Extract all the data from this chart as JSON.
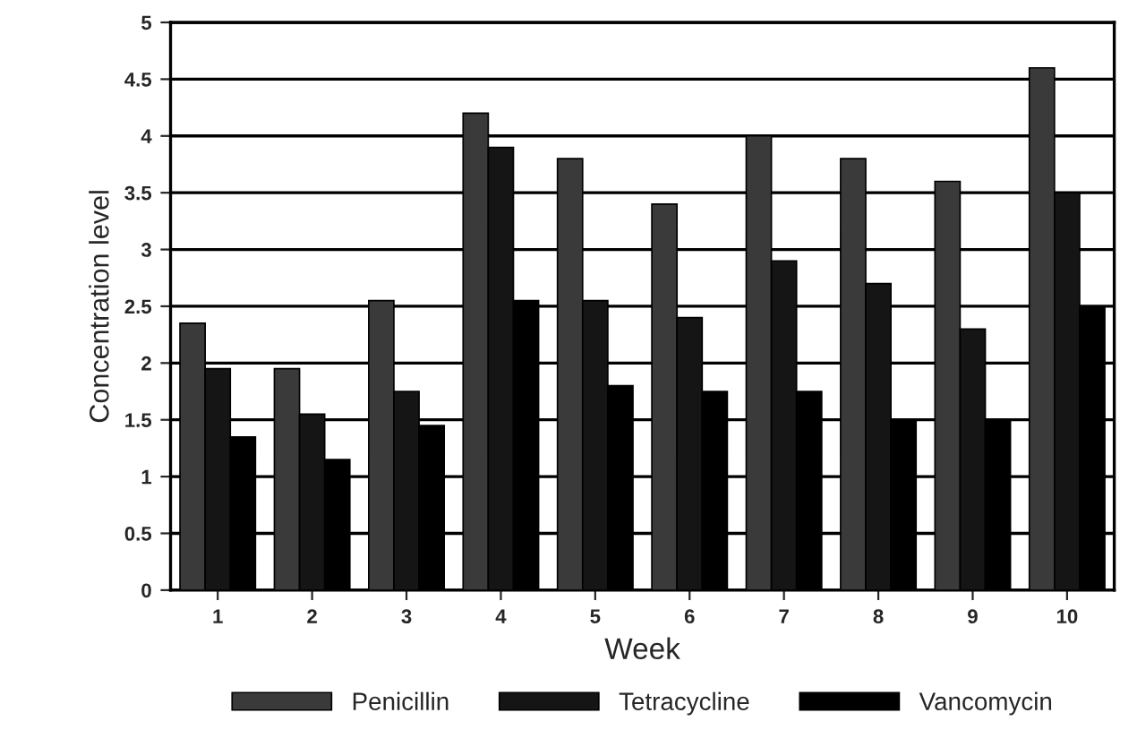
{
  "chart_data": {
    "type": "bar",
    "xlabel": "Week",
    "ylabel": "Concentration level",
    "categories": [
      "1",
      "2",
      "3",
      "4",
      "5",
      "6",
      "7",
      "8",
      "9",
      "10"
    ],
    "series": [
      {
        "name": "Penicillin",
        "color": "#3a3a3a",
        "values": [
          2.35,
          1.95,
          2.55,
          4.2,
          3.8,
          3.4,
          4.0,
          3.8,
          3.6,
          4.6
        ]
      },
      {
        "name": "Tetracycline",
        "color": "#151515",
        "values": [
          1.95,
          1.55,
          1.75,
          3.9,
          2.55,
          2.4,
          2.9,
          2.7,
          2.3,
          3.5
        ]
      },
      {
        "name": "Vancomycin",
        "color": "#000000",
        "values": [
          1.35,
          1.15,
          1.45,
          2.55,
          1.8,
          1.75,
          1.75,
          1.5,
          1.5,
          2.5
        ]
      }
    ],
    "ylim": [
      0,
      5
    ],
    "yticks": [
      0,
      0.5,
      1,
      1.5,
      2,
      2.5,
      3,
      3.5,
      4,
      4.5,
      5
    ],
    "grid": "y",
    "legend": "bottom"
  }
}
